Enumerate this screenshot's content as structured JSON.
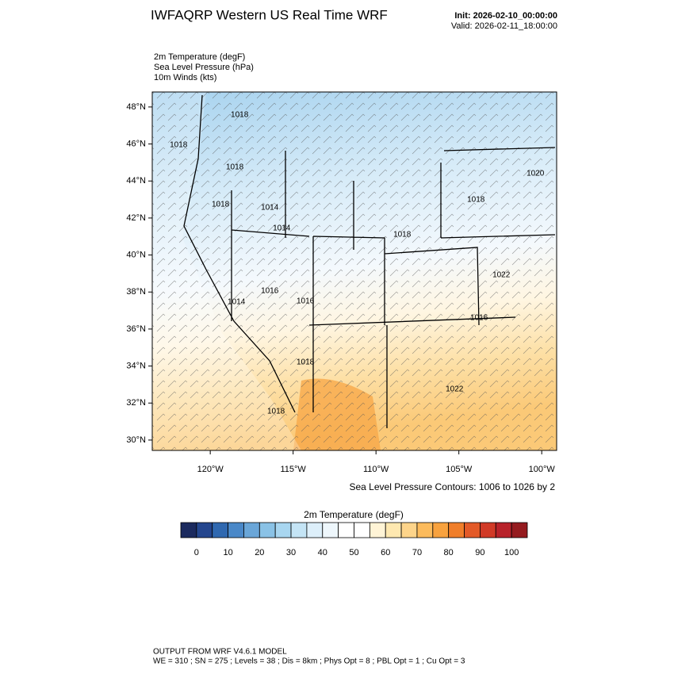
{
  "header": {
    "title": "IWFAQRP Western US Real Time WRF",
    "init": "Init: 2026-02-10_00:00:00",
    "valid": "Valid: 2026-02-11_18:00:00"
  },
  "fields": [
    "2m Temperature   (degF)",
    "Sea Level Pressure   (hPa)",
    "10m Winds   (kts)"
  ],
  "map": {
    "latlim": [
      29.44,
      48.81
    ],
    "lonlim": [
      -123.5,
      -99.1
    ],
    "latticks": [
      {
        "value": 30,
        "label": "30°N"
      },
      {
        "value": 32,
        "label": "32°N"
      },
      {
        "value": 34,
        "label": "34°N"
      },
      {
        "value": 36,
        "label": "36°N"
      },
      {
        "value": 38,
        "label": "38°N"
      },
      {
        "value": 40,
        "label": "40°N"
      },
      {
        "value": 42,
        "label": "42°N"
      },
      {
        "value": 44,
        "label": "44°N"
      },
      {
        "value": 46,
        "label": "46°N"
      },
      {
        "value": 48,
        "label": "48°N"
      }
    ],
    "lonticks": [
      {
        "value": -120,
        "label": "120°W"
      },
      {
        "value": -115,
        "label": "115°W"
      },
      {
        "value": -110,
        "label": "110°W"
      },
      {
        "value": -105,
        "label": "105°W"
      },
      {
        "value": -100,
        "label": "100°W"
      }
    ],
    "contour_labels": [
      {
        "text": "1018",
        "lon": -118.23,
        "lat": 47.57
      },
      {
        "text": "1018",
        "lon": -121.91,
        "lat": 45.94
      },
      {
        "text": "1018",
        "lon": -118.52,
        "lat": 44.74
      },
      {
        "text": "1020",
        "lon": -100.38,
        "lat": 44.4
      },
      {
        "text": "1018",
        "lon": -103.97,
        "lat": 42.99
      },
      {
        "text": "1018",
        "lon": -119.38,
        "lat": 42.73
      },
      {
        "text": "1014",
        "lon": -116.41,
        "lat": 42.56
      },
      {
        "text": "1014",
        "lon": -115.69,
        "lat": 41.44
      },
      {
        "text": "1018",
        "lon": -108.42,
        "lat": 41.1
      },
      {
        "text": "1022",
        "lon": -102.44,
        "lat": 38.92
      },
      {
        "text": "1014",
        "lon": -118.42,
        "lat": 37.46
      },
      {
        "text": "1016",
        "lon": -116.41,
        "lat": 38.06
      },
      {
        "text": "1016",
        "lon": -114.26,
        "lat": 37.5
      },
      {
        "text": "1016",
        "lon": -103.78,
        "lat": 36.6
      },
      {
        "text": "1018",
        "lon": -114.26,
        "lat": 34.2
      },
      {
        "text": "1022",
        "lon": -105.26,
        "lat": 32.74
      },
      {
        "text": "1018",
        "lon": -116.03,
        "lat": 31.54
      }
    ],
    "contour_note": "Sea Level Pressure Contours: 1006 to 1026 by 2"
  },
  "colorbar": {
    "title": "2m Temperature  (degF)",
    "range": [
      -5,
      105
    ],
    "ticks": [
      0,
      10,
      20,
      30,
      40,
      50,
      60,
      70,
      80,
      90,
      100
    ],
    "colors": [
      "#1b2a5e",
      "#24468e",
      "#2f68b0",
      "#4a88c8",
      "#6aa6d8",
      "#8ac2e6",
      "#a8d6f0",
      "#c4e4f5",
      "#ddeffa",
      "#eef7fc",
      "#ffffff",
      "#ffffff",
      "#fff4d6",
      "#fee8b0",
      "#fdd48a",
      "#fcbb5c",
      "#f8a23e",
      "#f07e2a",
      "#e35a28",
      "#d13a27",
      "#b8222a",
      "#951b1f"
    ]
  },
  "footer": [
    "OUTPUT FROM WRF V4.6.1 MODEL",
    "WE = 310 ; SN = 275 ; Levels = 38 ; Dis = 8km ; Phys Opt = 8 ; PBL Opt = 1 ; Cu Opt = 3"
  ]
}
